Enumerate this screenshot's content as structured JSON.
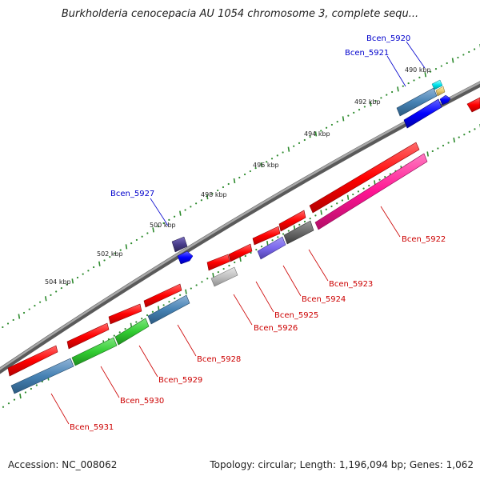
{
  "title": "Burkholderia cenocepacia AU 1054 chromosome 3, complete sequ...",
  "footer": {
    "accession": "Accession: NC_008062",
    "stats": "Topology: circular; Length: 1,196,094 bp; Genes: 1,062"
  },
  "axis_labels": [
    "490 kbp",
    "492 kbp",
    "494 kbp",
    "496 kbp",
    "498 kbp",
    "500 kbp",
    "502 kbp",
    "504 kbp"
  ],
  "gene_labels": {
    "forward": [
      "Bcen_5920",
      "Bcen_5921",
      "Bcen_5927"
    ],
    "reverse": [
      "Bcen_5922",
      "Bcen_5923",
      "Bcen_5924",
      "Bcen_5925",
      "Bcen_5926",
      "Bcen_5928",
      "Bcen_5929",
      "Bcen_5930",
      "Bcen_5931"
    ]
  },
  "colors": {
    "forward_label": "#0000cc",
    "reverse_label": "#cc0000",
    "backbone": "#808080",
    "tick": "#2e8b2e"
  }
}
